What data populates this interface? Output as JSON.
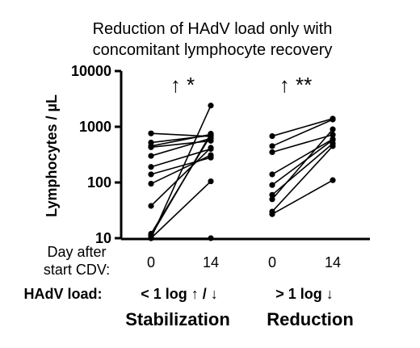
{
  "chart_data": {
    "type": "scatter",
    "title_lines": [
      "Reduction of HAdV load only with",
      "concomitant lymphocyte recovery"
    ],
    "ylabel": "Lymphocytes / µL",
    "yscale": "log",
    "ylim": [
      10,
      10000
    ],
    "y_ticks": [
      "10",
      "100",
      "1000",
      "10000"
    ],
    "x_row_label_lines": [
      "Day after",
      "start CDV:"
    ],
    "x_ticks": [
      "0",
      "14",
      "0",
      "14"
    ],
    "load_row_label": "HAdV load:",
    "groups": [
      {
        "name": "Stabilization",
        "load_label": "< 1 log ↑ / ↓",
        "significance": "↑ *",
        "pairs": [
          [
            760,
            670
          ],
          [
            520,
            700
          ],
          [
            450,
            730
          ],
          [
            430,
            560
          ],
          [
            300,
            620
          ],
          [
            190,
            400
          ],
          [
            140,
            280
          ],
          [
            95,
            310
          ],
          [
            38,
            420
          ],
          [
            12,
            700
          ],
          [
            11,
            750
          ],
          [
            10,
            2400
          ],
          [
            10,
            105
          ],
          [
            10,
            10
          ]
        ]
      },
      {
        "name": "Reduction",
        "load_label": "> 1 log ↓",
        "significance": "↑ **",
        "pairs": [
          [
            680,
            1400
          ],
          [
            450,
            1350
          ],
          [
            350,
            720
          ],
          [
            140,
            600
          ],
          [
            90,
            580
          ],
          [
            60,
            500
          ],
          [
            50,
            900
          ],
          [
            30,
            450
          ],
          [
            27,
            110
          ]
        ]
      }
    ]
  }
}
